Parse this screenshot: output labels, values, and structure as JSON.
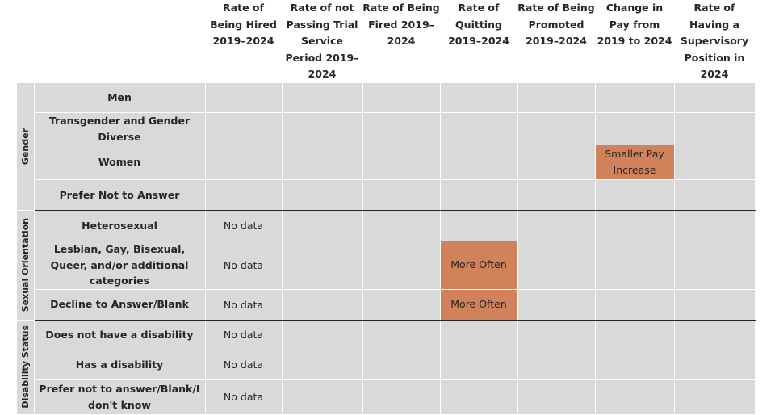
{
  "headers": [
    "Rate of Being Hired 2019–2024",
    "Rate of not Passing Trial Service Period 2019–2024",
    "Rate of Being Fired 2019–2024",
    "Rate of Quitting 2019–2024",
    "Rate of Being Promoted 2019–2024",
    "Change in Pay from 2019 to 2024",
    "Rate of Having a Supervisory Position in 2024"
  ],
  "groups": [
    {
      "label": "Gender",
      "rows": [
        {
          "label": "Men",
          "cells": [
            "",
            "",
            "",
            "",
            "",
            "",
            ""
          ]
        },
        {
          "label": "Transgender and Gender Diverse",
          "cells": [
            "",
            "",
            "",
            "",
            "",
            "",
            ""
          ]
        },
        {
          "label": "Women",
          "cells": [
            "",
            "",
            "",
            "",
            "",
            "Smaller Pay Increase",
            ""
          ]
        },
        {
          "label": "Prefer Not to Answer",
          "cells": [
            "",
            "",
            "",
            "",
            "",
            "",
            ""
          ]
        }
      ]
    },
    {
      "label": "Sexual Orientation",
      "rows": [
        {
          "label": "Heterosexual",
          "cells": [
            "No data",
            "",
            "",
            "",
            "",
            "",
            ""
          ]
        },
        {
          "label": "Lesbian, Gay, Bisexual, Queer, and/or additional categories",
          "cells": [
            "No data",
            "",
            "",
            "More Often",
            "",
            "",
            ""
          ]
        },
        {
          "label": "Decline to Answer/Blank",
          "cells": [
            "No data",
            "",
            "",
            "More Often",
            "",
            "",
            ""
          ]
        }
      ]
    },
    {
      "label": "Disability Status",
      "rows": [
        {
          "label": "Does not have a disability",
          "cells": [
            "No data",
            "",
            "",
            "",
            "",
            "",
            ""
          ]
        },
        {
          "label": "Has a disability",
          "cells": [
            "No data",
            "",
            "",
            "",
            "",
            "",
            ""
          ]
        },
        {
          "label": "Prefer not to answer/Blank/I don't know",
          "cells": [
            "No data",
            "",
            "",
            "",
            "",
            "",
            ""
          ]
        }
      ]
    }
  ],
  "colors": {
    "cell_background": "#d9d9d9",
    "highlight": "#d2825b",
    "highlight_text": "#ffffff",
    "text": "#262626"
  }
}
